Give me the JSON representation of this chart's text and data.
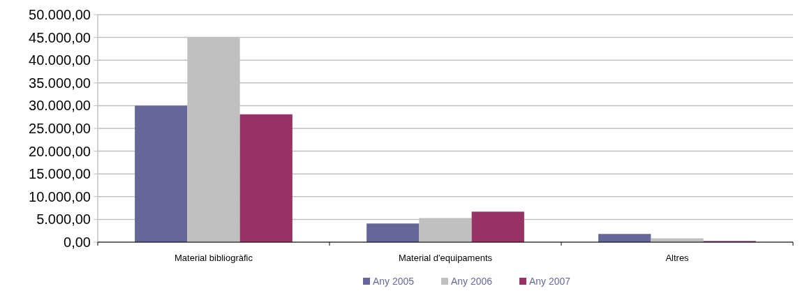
{
  "chart_data": {
    "type": "bar",
    "categories": [
      "Material bibliogràfic",
      "Material d'equipaments",
      "Altres"
    ],
    "series": [
      {
        "name": "Any 2005",
        "color": "#666699",
        "values": [
          30000,
          4100,
          1800
        ]
      },
      {
        "name": "Any 2006",
        "color": "#c0c0c0",
        "values": [
          45000,
          5300,
          850
        ]
      },
      {
        "name": "Any 2007",
        "color": "#993366",
        "values": [
          28100,
          6700,
          250
        ]
      }
    ],
    "ylim": [
      0,
      50000
    ],
    "yticks": [
      {
        "value": 0,
        "label": "0,00"
      },
      {
        "value": 5000,
        "label": "5.000,00"
      },
      {
        "value": 10000,
        "label": "10.000,00"
      },
      {
        "value": 15000,
        "label": "15.000,00"
      },
      {
        "value": 20000,
        "label": "20.000,00"
      },
      {
        "value": 25000,
        "label": "25.000,00"
      },
      {
        "value": 30000,
        "label": "30.000,00"
      },
      {
        "value": 35000,
        "label": "35.000,00"
      },
      {
        "value": 40000,
        "label": "40.000,00"
      },
      {
        "value": 45000,
        "label": "45.000,00"
      },
      {
        "value": 50000,
        "label": "50.000,00"
      }
    ],
    "grid": "y",
    "legend": "bottom"
  }
}
